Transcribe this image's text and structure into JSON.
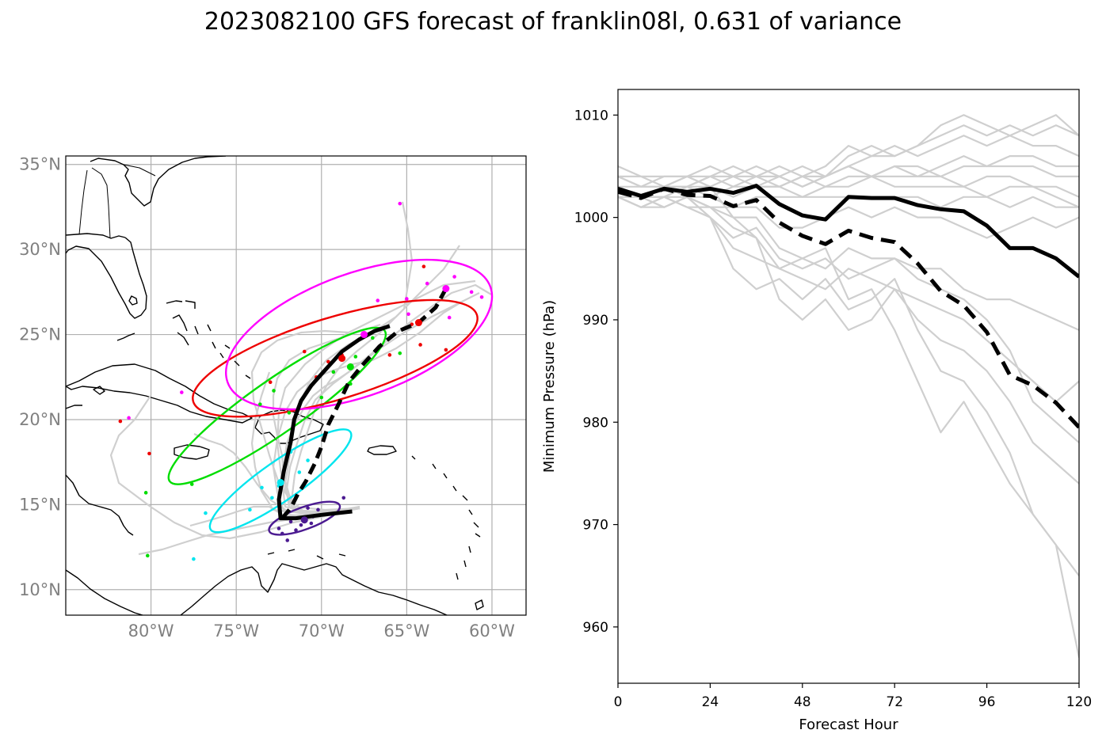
{
  "title": "2023082100 GFS forecast of franklin08l, 0.631 of variance",
  "chart_data": [
    {
      "type": "map",
      "lon_range": [
        -85,
        -58
      ],
      "lat_range": [
        8.5,
        35.5
      ],
      "xticks": [
        {
          "lon": -80,
          "label": "80°W"
        },
        {
          "lon": -75,
          "label": "75°W"
        },
        {
          "lon": -70,
          "label": "70°W"
        },
        {
          "lon": -65,
          "label": "65°W"
        },
        {
          "lon": -60,
          "label": "60°W"
        }
      ],
      "yticks": [
        {
          "lat": 10,
          "label": "10°N"
        },
        {
          "lat": 15,
          "label": "15°N"
        },
        {
          "lat": 20,
          "label": "20°N"
        },
        {
          "lat": 25,
          "label": "25°N"
        },
        {
          "lat": 30,
          "label": "30°N"
        },
        {
          "lat": 35,
          "label": "35°N"
        }
      ],
      "grid": true,
      "tracks": [
        {
          "style": "solid",
          "color": "#000000",
          "points": [
            [
              -68.2,
              14.6
            ],
            [
              -70.0,
              14.4
            ],
            [
              -71.5,
              14.2
            ],
            [
              -72.4,
              14.2
            ],
            [
              -72.5,
              15.3
            ],
            [
              -72.2,
              17.0
            ],
            [
              -71.8,
              18.7
            ],
            [
              -71.6,
              20.0
            ],
            [
              -71.2,
              21.1
            ],
            [
              -70.6,
              22.0
            ],
            [
              -69.8,
              22.9
            ],
            [
              -68.8,
              24.0
            ],
            [
              -67.8,
              24.7
            ],
            [
              -66.9,
              25.2
            ],
            [
              -66.0,
              25.5
            ]
          ]
        },
        {
          "style": "dashed",
          "color": "#000000",
          "points": [
            [
              -72.3,
              14.2
            ],
            [
              -71.8,
              14.8
            ],
            [
              -71.4,
              15.6
            ],
            [
              -70.9,
              16.4
            ],
            [
              -70.4,
              17.4
            ],
            [
              -70.0,
              18.4
            ],
            [
              -69.6,
              19.7
            ],
            [
              -69.0,
              20.9
            ],
            [
              -68.4,
              22.2
            ],
            [
              -67.6,
              23.2
            ],
            [
              -66.6,
              24.3
            ],
            [
              -65.5,
              25.2
            ],
            [
              -64.3,
              25.7
            ],
            [
              -63.3,
              26.6
            ],
            [
              -62.7,
              27.7
            ]
          ]
        }
      ],
      "ellipses": [
        {
          "color": "#4b1a91",
          "center": [
            -71.0,
            14.2
          ],
          "rx_deg": 2.2,
          "ry_deg": 0.65,
          "angle_deg": 20
        },
        {
          "color": "#00e5ee",
          "center": [
            -72.4,
            16.4
          ],
          "rx_deg": 5.0,
          "ry_deg": 1.15,
          "angle_deg": 35
        },
        {
          "color": "#00dd00",
          "center": [
            -72.6,
            20.8
          ],
          "rx_deg": 7.7,
          "ry_deg": 1.55,
          "angle_deg": 35
        },
        {
          "color": "#ee0000",
          "center": [
            -69.2,
            23.6
          ],
          "rx_deg": 8.7,
          "ry_deg": 2.4,
          "angle_deg": 17
        },
        {
          "color": "#ff00ff",
          "center": [
            -67.8,
            25.0
          ],
          "rx_deg": 8.2,
          "ry_deg": 3.6,
          "angle_deg": 20
        }
      ],
      "ensemble_points": [
        {
          "color": "#4b1a91",
          "points": [
            [
              -71.0,
              14.1
            ],
            [
              -71.5,
              13.5
            ],
            [
              -70.5,
              14.3
            ],
            [
              -72.3,
              13.3
            ],
            [
              -70.8,
              14.8
            ],
            [
              -68.7,
              15.4
            ],
            [
              -72.0,
              12.9
            ],
            [
              -71.2,
              13.8
            ],
            [
              -70.2,
              14.7
            ],
            [
              -71.8,
              14.0
            ],
            [
              -70.6,
              13.9
            ],
            [
              -72.5,
              13.6
            ]
          ]
        },
        {
          "color": "#00e5ee",
          "points": [
            [
              -72.5,
              16.1
            ],
            [
              -71.3,
              16.9
            ],
            [
              -72.9,
              15.4
            ],
            [
              -70.8,
              17.6
            ],
            [
              -74.2,
              14.7
            ],
            [
              -76.8,
              14.5
            ],
            [
              -77.5,
              11.8
            ],
            [
              -73.5,
              16.0
            ],
            [
              -71.8,
              18.1
            ]
          ]
        },
        {
          "color": "#00dd00",
          "points": [
            [
              -71.9,
              20.4
            ],
            [
              -68.3,
              22.1
            ],
            [
              -72.8,
              21.7
            ],
            [
              -77.6,
              16.2
            ],
            [
              -80.3,
              15.7
            ],
            [
              -80.2,
              12.0
            ],
            [
              -70.0,
              21.3
            ],
            [
              -69.3,
              22.8
            ],
            [
              -73.6,
              20.9
            ],
            [
              -67.0,
              24.8
            ],
            [
              -65.4,
              23.9
            ],
            [
              -68.0,
              23.7
            ]
          ]
        },
        {
          "color": "#ee0000",
          "points": [
            [
              -68.8,
              23.8
            ],
            [
              -64.7,
              25.6
            ],
            [
              -81.8,
              19.9
            ],
            [
              -80.1,
              18.0
            ],
            [
              -71.0,
              24.0
            ],
            [
              -73.0,
              22.2
            ],
            [
              -69.6,
              23.4
            ],
            [
              -64.2,
              24.4
            ],
            [
              -66.0,
              23.8
            ],
            [
              -64.0,
              29.0
            ],
            [
              -62.7,
              24.1
            ],
            [
              -70.3,
              22.5
            ]
          ]
        },
        {
          "color": "#ff00ff",
          "points": [
            [
              -67.5,
              25.0
            ],
            [
              -62.7,
              27.7
            ],
            [
              -65.4,
              32.7
            ],
            [
              -81.3,
              20.1
            ],
            [
              -78.2,
              21.6
            ],
            [
              -63.8,
              28.0
            ],
            [
              -62.2,
              28.4
            ],
            [
              -60.6,
              27.2
            ],
            [
              -61.2,
              27.5
            ],
            [
              -65.0,
              27.1
            ],
            [
              -66.7,
              27.0
            ],
            [
              -64.9,
              26.2
            ],
            [
              -62.5,
              26.0
            ]
          ]
        }
      ]
    },
    {
      "type": "line",
      "xlabel": "Forecast Hour",
      "ylabel": "Minimum Pressure (hPa)",
      "xlim": [
        0,
        120
      ],
      "ylim": [
        954.5,
        1012.5
      ],
      "xticks": [
        0,
        24,
        48,
        72,
        96,
        120
      ],
      "yticks": [
        960,
        970,
        980,
        990,
        1000,
        1010
      ],
      "grid": false,
      "series": [
        {
          "style": "solid",
          "color": "#000000",
          "x": [
            0,
            6,
            12,
            18,
            24,
            30,
            36,
            42,
            48,
            54,
            60,
            66,
            72,
            78,
            84,
            90,
            96,
            102,
            108,
            114,
            120
          ],
          "values": [
            1002.8,
            1002.1,
            1002.8,
            1002.5,
            1002.8,
            1002.4,
            1003.1,
            1001.3,
            1000.2,
            999.8,
            1002.0,
            1001.9,
            1001.9,
            1001.2,
            1000.8,
            1000.6,
            999.2,
            997.0,
            997.0,
            996.0,
            994.2
          ]
        },
        {
          "style": "dashed",
          "color": "#000000",
          "x": [
            0,
            6,
            12,
            18,
            24,
            30,
            36,
            42,
            48,
            54,
            60,
            66,
            72,
            78,
            84,
            90,
            96,
            102,
            108,
            114,
            120
          ],
          "values": [
            1002.5,
            1001.9,
            1002.8,
            1002.2,
            1002.1,
            1001.1,
            1001.7,
            999.5,
            998.2,
            997.4,
            998.7,
            998.0,
            997.6,
            995.5,
            992.8,
            991.4,
            988.8,
            984.6,
            983.6,
            981.9,
            979.5
          ]
        }
      ],
      "ensemble": [
        [
          1004,
          1003,
          1004,
          1004,
          1004,
          1004,
          1003,
          1004,
          1003,
          1004,
          1005,
          1006,
          1006,
          1007,
          1008,
          1009,
          1008,
          1009,
          1008,
          1009,
          1008
        ],
        [
          1003,
          1002,
          1003,
          1003,
          1004,
          1003,
          1004,
          1004,
          1005,
          1004,
          1006,
          1007,
          1006,
          1007,
          1009,
          1010,
          1009,
          1008,
          1009,
          1010,
          1008
        ],
        [
          1005,
          1004,
          1003,
          1003,
          1004,
          1005,
          1004,
          1005,
          1004,
          1005,
          1007,
          1006,
          1007,
          1006,
          1007,
          1008,
          1007,
          1008,
          1007,
          1007,
          1006
        ],
        [
          1002,
          1001,
          1002,
          1003,
          1002,
          1003,
          1003,
          1003,
          1002,
          1003,
          1003,
          1004,
          1004,
          1004,
          1005,
          1006,
          1005,
          1006,
          1006,
          1005,
          1005
        ],
        [
          1003,
          1003,
          1003,
          1004,
          1003,
          1004,
          1004,
          1003,
          1004,
          1004,
          1005,
          1004,
          1005,
          1005,
          1004,
          1005,
          1005,
          1005,
          1005,
          1004,
          1004
        ],
        [
          1004,
          1004,
          1004,
          1004,
          1005,
          1004,
          1005,
          1004,
          1003,
          1004,
          1005,
          1004,
          1005,
          1004,
          1004,
          1003,
          1004,
          1004,
          1003,
          1003,
          1002
        ],
        [
          1003,
          1002,
          1002,
          1003,
          1003,
          1002,
          1003,
          1003,
          1004,
          1003,
          1004,
          1004,
          1003,
          1003,
          1003,
          1003,
          1002,
          1003,
          1003,
          1002,
          1001
        ],
        [
          1002,
          1001,
          1002,
          1002,
          1001,
          1001,
          1002,
          1002,
          1002,
          1002,
          1002,
          1002,
          1002,
          1002,
          1001,
          1002,
          1002,
          1001,
          1002,
          1001,
          1001
        ],
        [
          1003,
          1002,
          1003,
          1002,
          1002,
          1001,
          1001,
          999,
          999,
          1000,
          1001,
          1000,
          1001,
          1000,
          1000,
          999,
          998,
          999,
          1000,
          999,
          1000
        ],
        [
          1002,
          1001,
          1001,
          1002,
          1001,
          1000,
          1000,
          997,
          996,
          995,
          997,
          996,
          996,
          995,
          995,
          993,
          992,
          992,
          991,
          990,
          989
        ],
        [
          1003,
          1002,
          1002,
          1001,
          1001,
          999,
          998,
          995,
          994,
          993,
          995,
          994,
          993,
          992,
          991,
          990,
          988,
          986,
          984,
          982,
          984
        ],
        [
          1002,
          1002,
          1001,
          1002,
          1000,
          998,
          999,
          996,
          995,
          996,
          994,
          995,
          996,
          994,
          993,
          992,
          990,
          987,
          982,
          980,
          978
        ],
        [
          1004,
          1003,
          1003,
          1004,
          1003,
          1000,
          998,
          992,
          990,
          992,
          989,
          990,
          993,
          990,
          988,
          987,
          985,
          982,
          978,
          976,
          974
        ],
        [
          1003,
          1002,
          1002,
          1001,
          1000,
          995,
          993,
          994,
          992,
          994,
          991,
          992,
          994,
          989,
          985,
          984,
          981,
          977,
          971,
          968,
          965
        ],
        [
          1003,
          1002,
          1001,
          1002,
          1000,
          997,
          996,
          995,
          996,
          997,
          992,
          993,
          989,
          984,
          979,
          982,
          978,
          974,
          971,
          968,
          957
        ]
      ]
    }
  ]
}
